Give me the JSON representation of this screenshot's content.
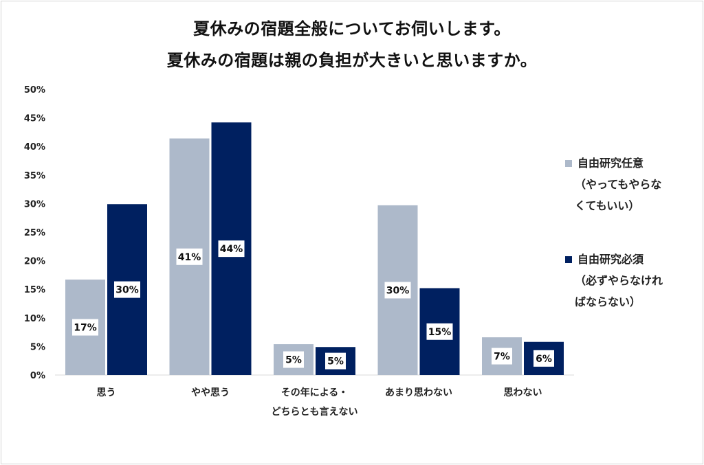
{
  "title_line1": "夏休みの宿題全般についてお伺いします。",
  "title_line2": "夏休みの宿題は親の負担が大きいと思いますか。",
  "chart_data": {
    "type": "bar",
    "title": "夏休みの宿題全般についてお伺いします。 夏休みの宿題は親の負担が大きいと思いますか。",
    "categories": [
      [
        "思う"
      ],
      [
        "やや思う"
      ],
      [
        "その年による・",
        "どちらとも言えない"
      ],
      [
        "あまり思わない"
      ],
      [
        "思わない"
      ]
    ],
    "series": [
      {
        "name_lines": [
          "自由研究任意",
          "（やってもやらな",
          "くてもいい）"
        ],
        "color": "#adb9ca",
        "values": [
          16.7,
          41.4,
          5.4,
          29.7,
          6.6
        ],
        "labels": [
          "17%",
          "41%",
          "5%",
          "30%",
          "7%"
        ]
      },
      {
        "name_lines": [
          "自由研究必須",
          "（必ずやらなけれ",
          "ばならない）"
        ],
        "color": "#002060",
        "values": [
          29.9,
          44.2,
          4.9,
          15.2,
          5.8
        ],
        "labels": [
          "30%",
          "44%",
          "5%",
          "15%",
          "6%"
        ]
      }
    ],
    "ylim": [
      0,
      50
    ],
    "yticks": [
      "0%",
      "5%",
      "10%",
      "15%",
      "20%",
      "25%",
      "30%",
      "35%",
      "40%",
      "45%",
      "50%"
    ],
    "grid": false,
    "legend_position": "right"
  }
}
